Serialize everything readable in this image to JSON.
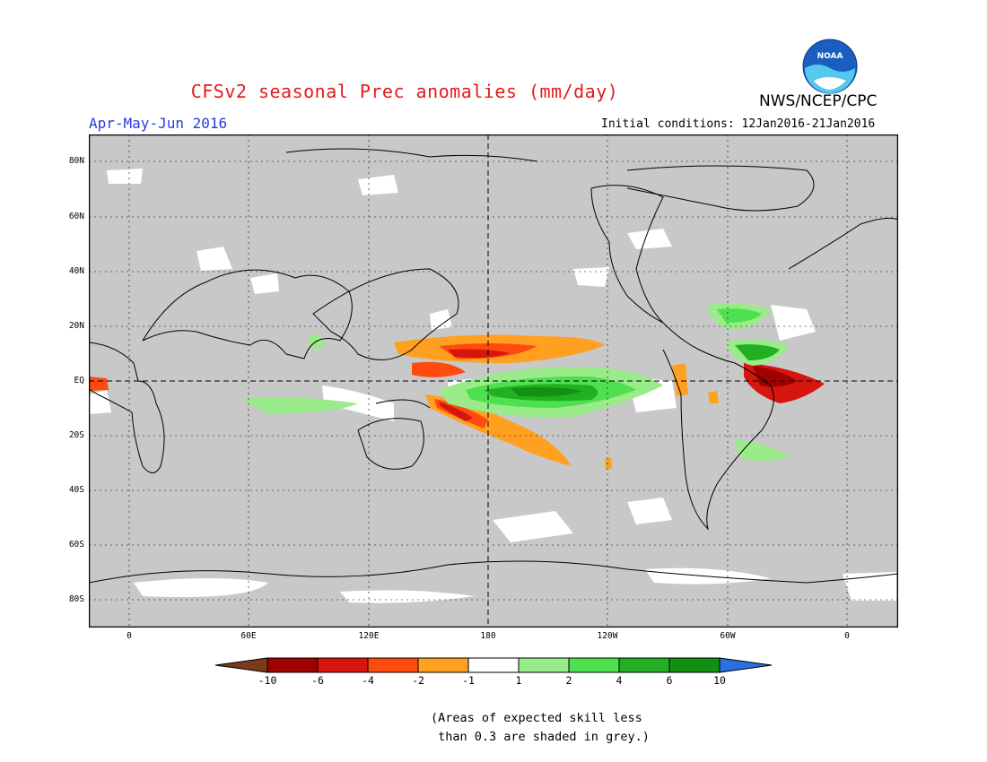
{
  "header": {
    "title": "CFSv2 seasonal Prec anomalies (mm/day)",
    "agency": "NWS/NCEP/CPC",
    "period": "Apr-May-Jun 2016",
    "initial_conditions": "Initial conditions: 12Jan2016-21Jan2016",
    "logo_text": "NOAA"
  },
  "map": {
    "lat_ticks": [
      "80N",
      "60N",
      "40N",
      "20N",
      "EQ",
      "20S",
      "40S",
      "60S",
      "80S"
    ],
    "lon_ticks": [
      "0",
      "60E",
      "120E",
      "180",
      "120W",
      "60W",
      "0"
    ],
    "background_color": "#c8c8c8",
    "land_outline_color": "#000000"
  },
  "legend": {
    "labels": [
      "-10",
      "-6",
      "-4",
      "-2",
      "-1",
      "1",
      "2",
      "4",
      "6",
      "10"
    ],
    "colors": [
      "#7b3a1a",
      "#a00000",
      "#d7150f",
      "#ff4a10",
      "#ffa020",
      "#ffffff",
      "#9aeb8a",
      "#4fe04f",
      "#22b022",
      "#119011",
      "#2a70e0"
    ]
  },
  "note": "(Areas of expected skill less\n than 0.3 are shaded in grey.)"
}
